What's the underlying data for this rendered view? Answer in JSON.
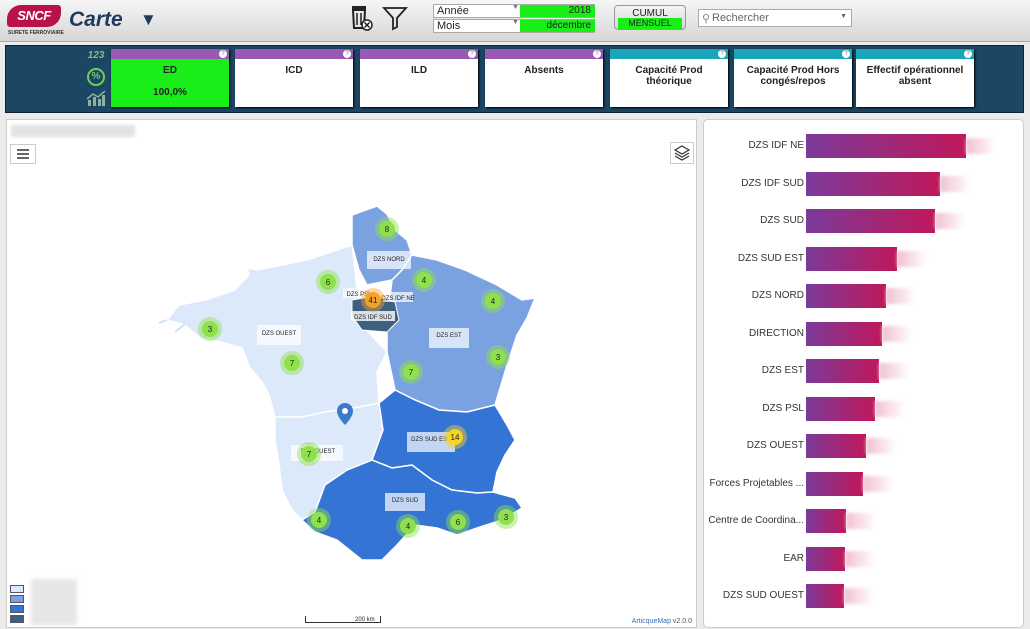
{
  "header": {
    "logo_text": "SNCF",
    "logo_subtitle": "SURETE FERROVIAIRE",
    "app_title": "Carte",
    "filters": {
      "year_label": "Année",
      "year_value": "2018",
      "month_label": "Mois",
      "month_value": "décembre"
    },
    "mode_toggle": {
      "top": "CUMUL",
      "bottom": "MENSUEL"
    },
    "search_placeholder": "Rechercher"
  },
  "kpi_icons": [
    "123",
    "%",
    "trend-chart-icon"
  ],
  "kpis": [
    {
      "name": "ED",
      "value": "100,0%",
      "band": "#9b59b6",
      "active": true
    },
    {
      "name": "ICD",
      "value": "",
      "band": "#9b59b6",
      "active": false
    },
    {
      "name": "ILD",
      "value": "",
      "band": "#9b59b6",
      "active": false
    },
    {
      "name": "Absents",
      "value": "",
      "band": "#9b59b6",
      "active": false
    },
    {
      "name": "Capacité Prod théorique",
      "value": "",
      "band": "#1aa5b8",
      "active": false
    },
    {
      "name": "Capacité Prod Hors congés/repos",
      "value": "",
      "band": "#1aa5b8",
      "active": false
    },
    {
      "name": "Effectif opérationnel absent",
      "value": "",
      "band": "#1aa5b8",
      "active": false
    }
  ],
  "map": {
    "region_labels": [
      "DZS NORD",
      "DZS PSL",
      "DZS IDF NE",
      "DZS IDF SUD",
      "DZS OUEST",
      "DZS EST",
      "DZS SUD EST",
      "DZS OUEST",
      "DZS SUD"
    ],
    "cluster_counts": [
      "8",
      "6",
      "4",
      "41",
      "4",
      "3",
      "7",
      "3",
      "7",
      "14",
      "7",
      "4",
      "4",
      "6",
      "3"
    ],
    "scale_label": "200 km",
    "attribution_link": "ArticqueMap",
    "attribution_version": "v2.0.0",
    "colors": {
      "light": "#dce9fa",
      "medium": "#7aa2e0",
      "dark": "#3474d4",
      "cluster_green": "#8ee04d",
      "cluster_orange": "#f5a22a",
      "cluster_yellow": "#f7d328",
      "pin": "#3b7ac8"
    }
  },
  "bar_chart": {
    "type": "bar",
    "categories": [
      "DZS IDF NE",
      "DZS IDF SUD",
      "DZS SUD",
      "DZS SUD EST",
      "DZS NORD",
      "DIRECTION",
      "DZS EST",
      "DZS PSL",
      "DZS OUEST",
      "Forces Projetables ...",
      "Centre de Coordina...",
      "EAR",
      "DZS SUD OUEST"
    ],
    "values": [
      155,
      130,
      125,
      88,
      78,
      74,
      71,
      67,
      58,
      55,
      39,
      38,
      37
    ],
    "xlim": [
      0,
      160
    ]
  }
}
